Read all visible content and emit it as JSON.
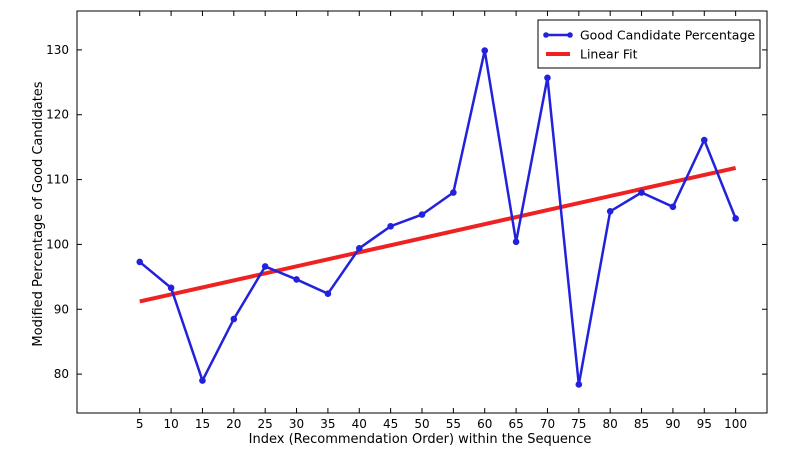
{
  "chart_data": {
    "type": "line",
    "title": "",
    "xlabel": "Index (Recommendation Order) within the Sequence",
    "ylabel": "Modified Percentage of Good Candidates",
    "x": [
      5,
      10,
      15,
      20,
      25,
      30,
      35,
      40,
      45,
      50,
      55,
      60,
      65,
      70,
      75,
      80,
      85,
      90,
      95,
      100
    ],
    "xlim": [
      -5,
      105
    ],
    "ylim": [
      74,
      136
    ],
    "xticks": [
      "5",
      "10",
      "15",
      "20",
      "25",
      "30",
      "35",
      "40",
      "45",
      "50",
      "55",
      "60",
      "65",
      "70",
      "75",
      "80",
      "85",
      "90",
      "95",
      "100"
    ],
    "yticks": [
      "80",
      "90",
      "100",
      "110",
      "120",
      "130"
    ],
    "grid": false,
    "legend_position": "top-right",
    "series": [
      {
        "name": "Good Candidate Percentage",
        "color": "#2222dd",
        "marker": "circle",
        "values": [
          97.3,
          93.3,
          79.0,
          88.5,
          96.6,
          94.6,
          92.4,
          99.4,
          102.8,
          104.6,
          108.0,
          129.9,
          100.4,
          125.7,
          78.4,
          105.1,
          108.0,
          105.8,
          116.1,
          104.0
        ]
      },
      {
        "name": "Linear Fit",
        "color": "#ee2222",
        "marker": "none",
        "line": {
          "x": [
            5,
            100
          ],
          "y": [
            91.2,
            111.8
          ]
        }
      }
    ]
  }
}
